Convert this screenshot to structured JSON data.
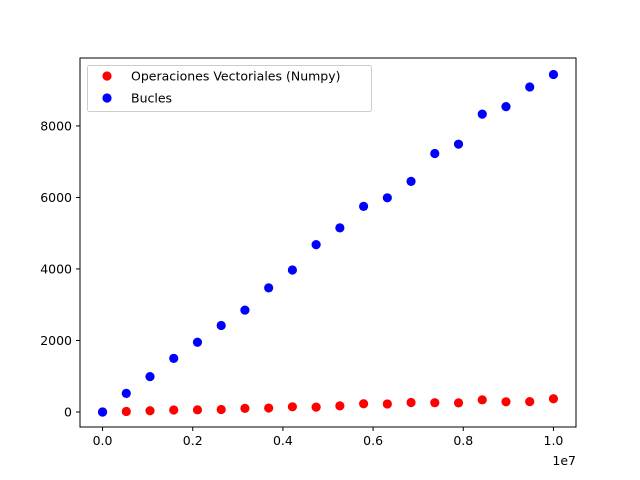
{
  "chart_data": {
    "type": "scatter",
    "xlim": [
      -500000,
      10500000
    ],
    "ylim": [
      -420,
      9900
    ],
    "x_ticks": [
      0,
      2000000,
      4000000,
      6000000,
      8000000,
      10000000
    ],
    "x_tick_labels": [
      "0.0",
      "0.2",
      "0.4",
      "0.6",
      "0.8",
      "1.0"
    ],
    "x_offset_label": "1e7",
    "y_ticks": [
      0,
      2000,
      4000,
      6000,
      8000
    ],
    "y_tick_labels": [
      "0",
      "2000",
      "4000",
      "6000",
      "8000"
    ],
    "grid": false,
    "legend_position": "top-left",
    "x": [
      0,
      526316,
      1052632,
      1578947,
      2105263,
      2631579,
      3157895,
      3684211,
      4210526,
      4736842,
      5263158,
      5789474,
      6315789,
      6842105,
      7368421,
      7894737,
      8421053,
      8947368,
      9473684,
      10000000
    ],
    "series": [
      {
        "name": "Operaciones Vectoriales (Numpy)",
        "color": "#ff0000",
        "values": [
          0,
          15,
          35,
          55,
          60,
          70,
          100,
          110,
          145,
          135,
          170,
          230,
          225,
          265,
          260,
          255,
          340,
          285,
          290,
          370
        ]
      },
      {
        "name": "Bucles",
        "color": "#0000ff",
        "values": [
          0,
          520,
          990,
          1500,
          1950,
          2420,
          2850,
          3470,
          3970,
          4680,
          5150,
          5750,
          5990,
          6450,
          7230,
          7490,
          8330,
          8540,
          9090,
          9440
        ]
      }
    ]
  }
}
